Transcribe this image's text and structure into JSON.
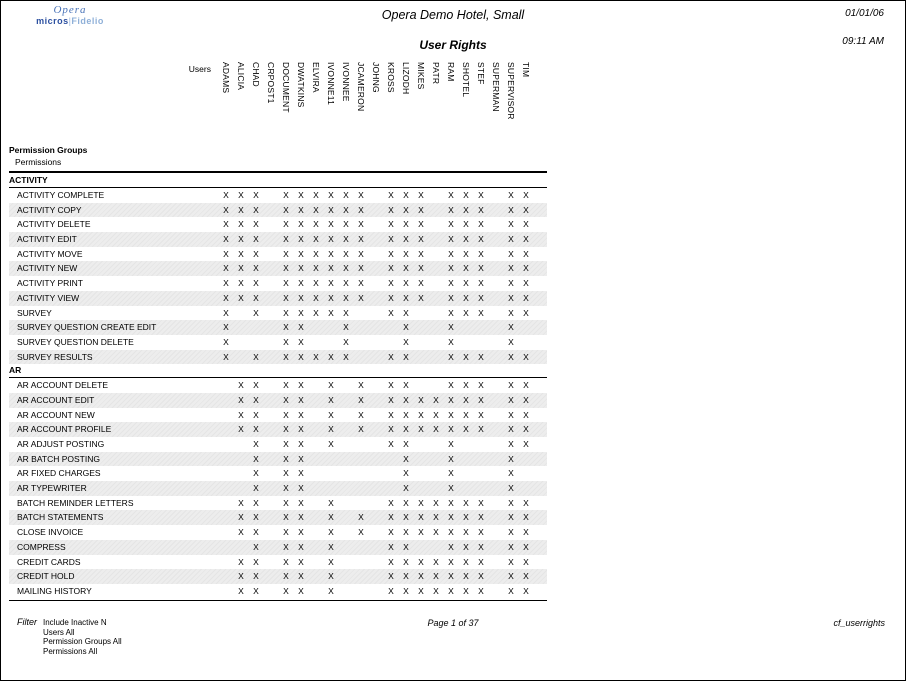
{
  "logo": {
    "product": "Opera",
    "brand_bold": "micros",
    "brand_light": "Fidelio",
    "color_dark_blue": "#2b4fa0",
    "color_light_blue": "#8fb0d8"
  },
  "header": {
    "hotel_name": "Opera Demo Hotel, Small",
    "date": "01/01/06",
    "time": "09:11 AM",
    "report_title": "User Rights"
  },
  "matrix": {
    "users_label": "Users",
    "users": [
      "ADAMS",
      "ALICIA",
      "CHAD",
      "CRPOST1",
      "DOCUMENT",
      "DWATKINS",
      "ELVIRA",
      "IVONNE11",
      "IVONNEE",
      "JCAMERON",
      "JOHNG",
      "KROSS",
      "LIZODH",
      "MIKES",
      "PATR",
      "RAM",
      "SHOTEL",
      "STEF",
      "SUPERMAN",
      "SUPERVISOR",
      "TIM"
    ],
    "group_header": "Permission Groups",
    "sub_header": "Permissions",
    "mark": "X",
    "sections": [
      {
        "name": "ACTIVITY",
        "rows": [
          {
            "label": "ACTIVITY COMPLETE",
            "granted": [
              0,
              1,
              2,
              4,
              5,
              6,
              7,
              8,
              9,
              11,
              12,
              13,
              15,
              16,
              17,
              19,
              20
            ]
          },
          {
            "label": "ACTIVITY COPY",
            "granted": [
              0,
              1,
              2,
              4,
              5,
              6,
              7,
              8,
              9,
              11,
              12,
              13,
              15,
              16,
              17,
              19,
              20
            ]
          },
          {
            "label": "ACTIVITY DELETE",
            "granted": [
              0,
              1,
              2,
              4,
              5,
              6,
              7,
              8,
              9,
              11,
              12,
              13,
              15,
              16,
              17,
              19,
              20
            ]
          },
          {
            "label": "ACTIVITY EDIT",
            "granted": [
              0,
              1,
              2,
              4,
              5,
              6,
              7,
              8,
              9,
              11,
              12,
              13,
              15,
              16,
              17,
              19,
              20
            ]
          },
          {
            "label": "ACTIVITY MOVE",
            "granted": [
              0,
              1,
              2,
              4,
              5,
              6,
              7,
              8,
              9,
              11,
              12,
              13,
              15,
              16,
              17,
              19,
              20
            ]
          },
          {
            "label": "ACTIVITY NEW",
            "granted": [
              0,
              1,
              2,
              4,
              5,
              6,
              7,
              8,
              9,
              11,
              12,
              13,
              15,
              16,
              17,
              19,
              20
            ]
          },
          {
            "label": "ACTIVITY PRINT",
            "granted": [
              0,
              1,
              2,
              4,
              5,
              6,
              7,
              8,
              9,
              11,
              12,
              13,
              15,
              16,
              17,
              19,
              20
            ]
          },
          {
            "label": "ACTIVITY VIEW",
            "granted": [
              0,
              1,
              2,
              4,
              5,
              6,
              7,
              8,
              9,
              11,
              12,
              13,
              15,
              16,
              17,
              19,
              20
            ]
          },
          {
            "label": "SURVEY",
            "granted": [
              0,
              2,
              4,
              5,
              6,
              7,
              8,
              11,
              12,
              15,
              16,
              17,
              19,
              20
            ]
          },
          {
            "label": "SURVEY QUESTION CREATE EDIT",
            "granted": [
              0,
              4,
              5,
              8,
              12,
              15,
              19
            ]
          },
          {
            "label": "SURVEY QUESTION DELETE",
            "granted": [
              0,
              4,
              5,
              8,
              12,
              15,
              19
            ]
          },
          {
            "label": "SURVEY RESULTS",
            "granted": [
              0,
              2,
              4,
              5,
              6,
              7,
              8,
              11,
              12,
              15,
              16,
              17,
              19,
              20
            ]
          }
        ]
      },
      {
        "name": "AR",
        "rows": [
          {
            "label": "AR ACCOUNT DELETE",
            "granted": [
              1,
              2,
              4,
              5,
              7,
              9,
              11,
              12,
              15,
              16,
              17,
              19,
              20
            ]
          },
          {
            "label": "AR ACCOUNT EDIT",
            "granted": [
              1,
              2,
              4,
              5,
              7,
              9,
              11,
              12,
              13,
              14,
              15,
              16,
              17,
              19,
              20
            ]
          },
          {
            "label": "AR ACCOUNT NEW",
            "granted": [
              1,
              2,
              4,
              5,
              7,
              9,
              11,
              12,
              13,
              14,
              15,
              16,
              17,
              19,
              20
            ]
          },
          {
            "label": "AR ACCOUNT PROFILE",
            "granted": [
              1,
              2,
              4,
              5,
              7,
              9,
              11,
              12,
              13,
              14,
              15,
              16,
              17,
              19,
              20
            ]
          },
          {
            "label": "AR ADJUST POSTING",
            "granted": [
              2,
              4,
              5,
              7,
              11,
              12,
              15,
              19,
              20
            ]
          },
          {
            "label": "AR BATCH POSTING",
            "granted": [
              2,
              4,
              5,
              12,
              15,
              19
            ]
          },
          {
            "label": "AR FIXED CHARGES",
            "granted": [
              2,
              4,
              5,
              12,
              15,
              19
            ]
          },
          {
            "label": "AR TYPEWRITER",
            "granted": [
              2,
              4,
              5,
              12,
              15,
              19
            ]
          },
          {
            "label": "BATCH REMINDER LETTERS",
            "granted": [
              1,
              2,
              4,
              5,
              7,
              11,
              12,
              13,
              14,
              15,
              16,
              17,
              19,
              20
            ]
          },
          {
            "label": "BATCH STATEMENTS",
            "granted": [
              1,
              2,
              4,
              5,
              7,
              9,
              11,
              12,
              13,
              14,
              15,
              16,
              17,
              19,
              20
            ]
          },
          {
            "label": "CLOSE INVOICE",
            "granted": [
              1,
              2,
              4,
              5,
              7,
              9,
              11,
              12,
              13,
              14,
              15,
              16,
              17,
              19,
              20
            ]
          },
          {
            "label": "COMPRESS",
            "granted": [
              2,
              4,
              5,
              7,
              11,
              12,
              15,
              16,
              17,
              19,
              20
            ]
          },
          {
            "label": "CREDIT CARDS",
            "granted": [
              1,
              2,
              4,
              5,
              7,
              11,
              12,
              13,
              14,
              15,
              16,
              17,
              19,
              20
            ]
          },
          {
            "label": "CREDIT HOLD",
            "granted": [
              1,
              2,
              4,
              5,
              7,
              11,
              12,
              13,
              14,
              15,
              16,
              17,
              19,
              20
            ]
          },
          {
            "label": "MAILING HISTORY",
            "granted": [
              1,
              2,
              4,
              5,
              7,
              11,
              12,
              13,
              14,
              15,
              16,
              17,
              19,
              20
            ]
          }
        ]
      }
    ]
  },
  "footer": {
    "filter_label": "Filter",
    "filter_lines": [
      "Include Inactive N",
      "Users All",
      "Permission Groups All",
      "Permissions All"
    ],
    "page_info": "Page 1 of 37",
    "report_code": "cf_userrights"
  }
}
